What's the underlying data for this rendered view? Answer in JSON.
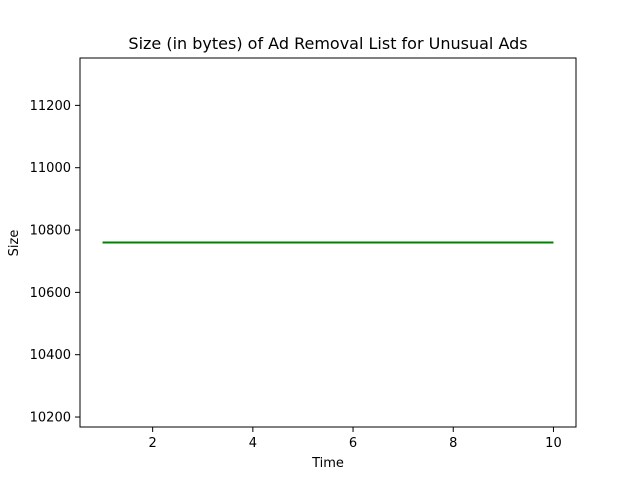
{
  "chart_data": {
    "type": "line",
    "title": "Size (in bytes) of Ad Removal List for Unusual Ads",
    "xlabel": "Time",
    "ylabel": "Size",
    "xlim": [
      0.55,
      10.45
    ],
    "ylim": [
      10168,
      11352
    ],
    "xticks": [
      2,
      4,
      6,
      8,
      10
    ],
    "yticks": [
      10200,
      10400,
      10600,
      10800,
      11000,
      11200
    ],
    "grid": false,
    "series": [
      {
        "color": "#008000",
        "x": [
          1,
          2,
          3,
          4,
          5,
          6,
          7,
          8,
          9,
          10
        ],
        "y": [
          10760,
          10760,
          10760,
          10760,
          10760,
          10760,
          10760,
          10760,
          10760,
          10760
        ]
      }
    ]
  }
}
